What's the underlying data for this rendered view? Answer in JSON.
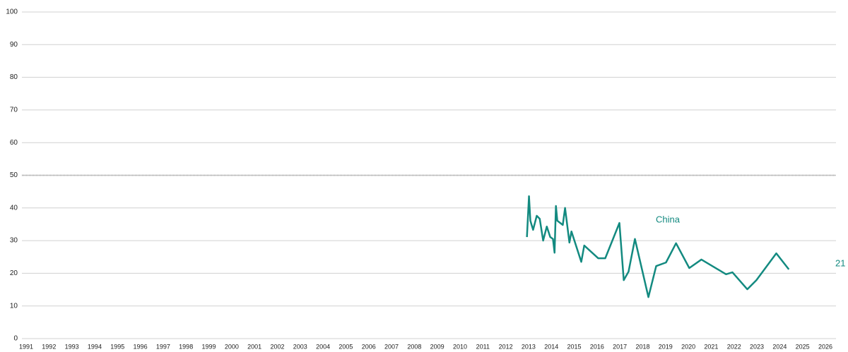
{
  "chart_data": {
    "type": "line",
    "xlim": [
      1991,
      2026
    ],
    "xticks": [
      1991,
      1992,
      1993,
      1994,
      1995,
      1996,
      1997,
      1998,
      1999,
      2000,
      2001,
      2002,
      2003,
      2004,
      2005,
      2006,
      2007,
      2008,
      2009,
      2010,
      2011,
      2012,
      2013,
      2014,
      2015,
      2016,
      2017,
      2018,
      2019,
      2020,
      2021,
      2022,
      2023,
      2024,
      2025,
      2026
    ],
    "ylim": [
      0,
      100
    ],
    "yticks": [
      0,
      10,
      20,
      30,
      40,
      50,
      60,
      70,
      80,
      90,
      100
    ],
    "grid": true,
    "reference_line": 50,
    "series": [
      {
        "name": "China",
        "color": "#138a80",
        "x": [
          2012.93,
          2013.02,
          2013.08,
          2013.2,
          2013.36,
          2013.49,
          2013.64,
          2013.8,
          2013.95,
          2014.07,
          2014.14,
          2014.2,
          2014.26,
          2014.5,
          2014.6,
          2014.79,
          2014.88,
          2015.31,
          2015.44,
          2016.05,
          2016.36,
          2016.98,
          2017.17,
          2017.38,
          2017.66,
          2018.25,
          2018.59,
          2019.02,
          2019.46,
          2020.04,
          2020.57,
          2021.65,
          2021.93,
          2022.58,
          2022.98,
          2023.85,
          2024.4
        ],
        "values": [
          31.1,
          43.6,
          36.1,
          33.3,
          37.6,
          36.7,
          30.0,
          34.3,
          31.1,
          30.5,
          26.3,
          40.6,
          36.1,
          34.8,
          40.0,
          29.4,
          32.8,
          23.5,
          28.5,
          24.6,
          24.6,
          35.4,
          17.9,
          20.5,
          30.5,
          12.7,
          22.2,
          23.3,
          29.2,
          21.6,
          24.2,
          19.7,
          20.3,
          15.1,
          17.9,
          26.1,
          21.2
        ],
        "end_label": 21
      }
    ]
  }
}
